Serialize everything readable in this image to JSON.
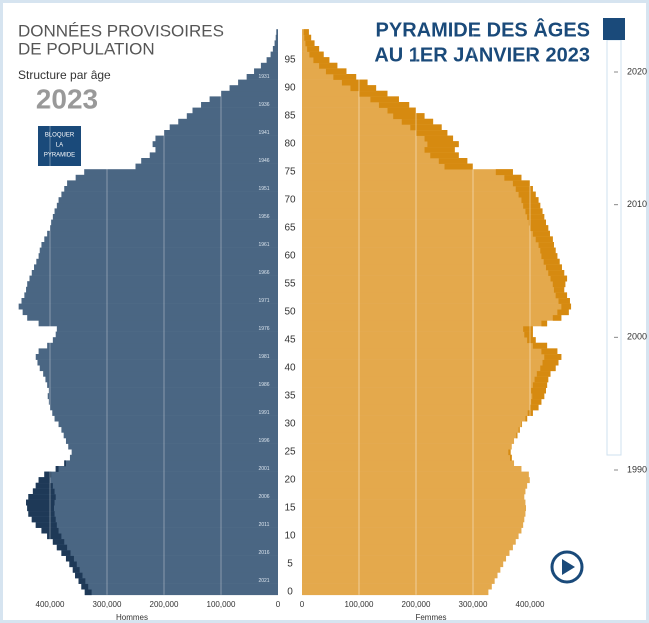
{
  "chart_data": {
    "type": "pyramid",
    "header": [
      "DONNÉES PROVISOIRES",
      "DE POPULATION"
    ],
    "subtitle": "Structure par âge",
    "year": "2023",
    "button": [
      "BLOQUER",
      "LA",
      "PYRAMIDE"
    ],
    "title": [
      "PYRAMIDE DES ÂGES",
      "AU 1ER JANVIER 2023"
    ],
    "ylim": [
      -0.5,
      100.5
    ],
    "yticks": [
      0,
      5,
      10,
      15,
      20,
      25,
      30,
      35,
      40,
      45,
      50,
      55,
      60,
      65,
      70,
      75,
      80,
      85,
      90,
      95
    ],
    "birth_year_ticks": [
      {
        "value": 2,
        "label": "2021"
      },
      {
        "value": 7,
        "label": "2016"
      },
      {
        "value": 12,
        "label": "2011"
      },
      {
        "value": 17,
        "label": "2006"
      },
      {
        "value": 22,
        "label": "2001"
      },
      {
        "value": 27,
        "label": "1996"
      },
      {
        "value": 32,
        "label": "1991"
      },
      {
        "value": 37,
        "label": "1986"
      },
      {
        "value": 42,
        "label": "1981"
      },
      {
        "value": 47,
        "label": "1976"
      },
      {
        "value": 52,
        "label": "1971"
      },
      {
        "value": 57,
        "label": "1966"
      },
      {
        "value": 62,
        "label": "1961"
      },
      {
        "value": 67,
        "label": "1956"
      },
      {
        "value": 72,
        "label": "1951"
      },
      {
        "value": 77,
        "label": "1946"
      },
      {
        "value": 82,
        "label": "1941"
      },
      {
        "value": 87,
        "label": "1936"
      },
      {
        "value": 92,
        "label": "1931"
      }
    ],
    "xlim": [
      0,
      480000
    ],
    "xticks": [
      {
        "value": 0,
        "label": "0"
      },
      {
        "value": 100000,
        "label": "100,000"
      },
      {
        "value": 200000,
        "label": "200,000"
      },
      {
        "value": 300000,
        "label": "300,000"
      },
      {
        "value": 400000,
        "label": "400,000"
      }
    ],
    "grid": true,
    "series": [
      {
        "name": "Hommes",
        "color": "#4a6683",
        "excess_color": "#1e3957",
        "values": [
          339000,
          345000,
          350000,
          356000,
          360000,
          366000,
          372000,
          380000,
          388000,
          395000,
          405000,
          415000,
          425000,
          432000,
          438000,
          440000,
          442000,
          438000,
          430000,
          425000,
          420000,
          410000,
          390000,
          375000,
          365000,
          362000,
          368000,
          372000,
          376000,
          380000,
          385000,
          392000,
          396000,
          400000,
          402000,
          404000,
          402000,
          405000,
          408000,
          412000,
          418000,
          422000,
          425000,
          420000,
          405000,
          395000,
          390000,
          388000,
          420000,
          440000,
          448000,
          455000,
          450000,
          445000,
          442000,
          440000,
          436000,
          432000,
          428000,
          424000,
          420000,
          418000,
          415000,
          410000,
          405000,
          400000,
          398000,
          395000,
          392000,
          388000,
          385000,
          380000,
          375000,
          370000,
          355000,
          340000,
          250000,
          240000,
          225000,
          215000,
          220000,
          215000,
          200000,
          190000,
          175000,
          160000,
          150000,
          135000,
          120000,
          100000,
          85000,
          70000,
          55000,
          42000,
          30000,
          20000,
          13000,
          9000,
          6000,
          4000,
          3000
        ]
      },
      {
        "name": "Femmes",
        "color": "#e4a94c",
        "excess_color": "#d68a10",
        "values": [
          327000,
          333000,
          338000,
          343000,
          348000,
          353000,
          358000,
          364000,
          370000,
          375000,
          380000,
          385000,
          388000,
          390000,
          392000,
          393000,
          392000,
          390000,
          392000,
          395000,
          400000,
          398000,
          385000,
          372000,
          368000,
          366000,
          368000,
          372000,
          378000,
          382000,
          386000,
          395000,
          405000,
          415000,
          420000,
          425000,
          428000,
          430000,
          432000,
          436000,
          445000,
          450000,
          455000,
          448000,
          430000,
          410000,
          405000,
          405000,
          430000,
          455000,
          468000,
          472000,
          470000,
          465000,
          460000,
          462000,
          465000,
          460000,
          456000,
          452000,
          448000,
          445000,
          442000,
          440000,
          435000,
          432000,
          428000,
          425000,
          422000,
          418000,
          415000,
          410000,
          405000,
          400000,
          385000,
          370000,
          300000,
          290000,
          275000,
          268000,
          275000,
          265000,
          255000,
          245000,
          230000,
          215000,
          200000,
          188000,
          170000,
          150000,
          130000,
          115000,
          95000,
          78000,
          62000,
          48000,
          38000,
          30000,
          22000,
          16000,
          12000
        ]
      }
    ],
    "slider_ticks": [
      2020,
      2010,
      2000,
      1990
    ]
  }
}
